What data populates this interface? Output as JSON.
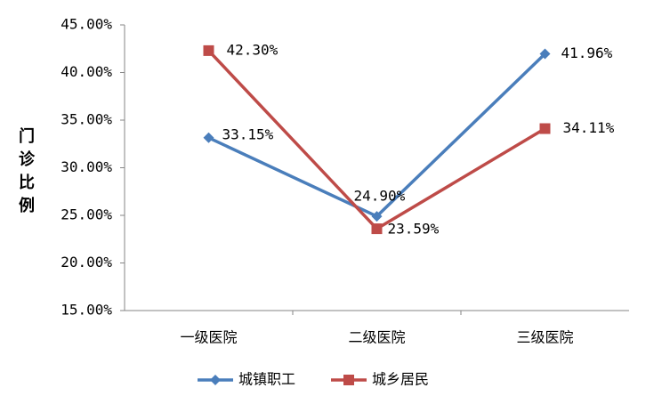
{
  "chart_data": {
    "type": "line",
    "y_label": "门诊比例",
    "categories": [
      "一级医院",
      "二级医院",
      "三级医院"
    ],
    "series": [
      {
        "name": "城镇职工",
        "color": "#4a7ebb",
        "marker": "diamond",
        "values": [
          33.15,
          24.9,
          41.96
        ],
        "value_labels": [
          "33.15%",
          "24.90%",
          "41.96%"
        ]
      },
      {
        "name": "城乡居民",
        "color": "#be4b48",
        "marker": "square",
        "values": [
          42.3,
          23.59,
          34.11
        ],
        "value_labels": [
          "42.30%",
          "23.59%",
          "34.11%"
        ]
      }
    ],
    "ylim": [
      15,
      45
    ],
    "yticks": [
      {
        "value": 15,
        "label": "15.00%"
      },
      {
        "value": 20,
        "label": "20.00%"
      },
      {
        "value": 25,
        "label": "25.00%"
      },
      {
        "value": 30,
        "label": "30.00%"
      },
      {
        "value": 35,
        "label": "35.00%"
      },
      {
        "value": 40,
        "label": "40.00%"
      },
      {
        "value": 45,
        "label": "45.00%"
      }
    ],
    "grid": false,
    "legend": "bottom"
  }
}
